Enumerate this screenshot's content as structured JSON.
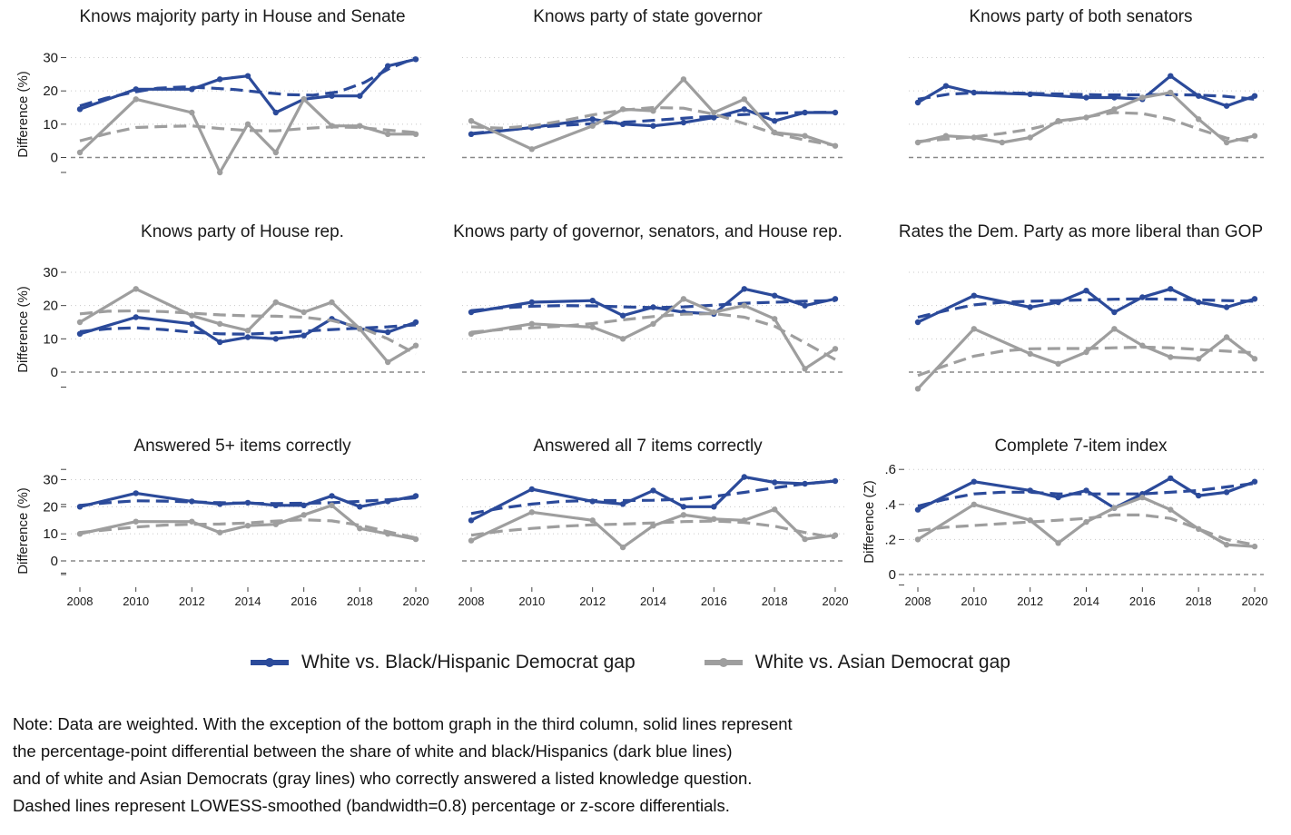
{
  "colors": {
    "blue": "#2b4a9a",
    "gray": "#9e9e9e"
  },
  "years": [
    2008,
    2009,
    2010,
    2011,
    2012,
    2013,
    2014,
    2015,
    2016,
    2017,
    2018,
    2019,
    2020
  ],
  "chart_data": [
    {
      "type": "line",
      "title": "Knows majority party in House and Senate",
      "ylabel": "Difference (%)",
      "yticks": [
        0,
        10,
        20,
        30
      ],
      "yticklabels": [
        "0",
        "10",
        "20",
        "30"
      ],
      "ylim": [
        -6,
        36
      ],
      "series": [
        {
          "name": "White vs. Black/Hispanic Democrat gap",
          "x": [
            2008,
            2010,
            2012,
            2013,
            2014,
            2015,
            2016,
            2017,
            2018,
            2019,
            2020
          ],
          "values": [
            14.5,
            20.5,
            20.5,
            23.5,
            24.5,
            13.5,
            17.5,
            18.5,
            18.5,
            27.5,
            29.5
          ],
          "smooth": [
            15.5,
            17.8,
            19.5,
            20.8,
            21.2,
            20.9,
            20.4,
            19.6,
            18.9,
            18.7,
            19.7,
            22.5,
            26.8,
            30.0
          ]
        },
        {
          "name": "White vs. Asian Democrat gap",
          "x": [
            2008,
            2010,
            2012,
            2013,
            2014,
            2015,
            2016,
            2017,
            2018,
            2019,
            2020
          ],
          "values": [
            1.5,
            17.5,
            13.5,
            -4.5,
            10,
            1.5,
            17.5,
            9.5,
            9.5,
            7,
            7
          ],
          "smooth": [
            5,
            7.2,
            9,
            9.3,
            9.5,
            8.7,
            8.1,
            8,
            8.7,
            9.2,
            9,
            8.2,
            7.5
          ]
        }
      ]
    },
    {
      "type": "line",
      "title": "Knows party of state governor",
      "ylabel": "",
      "yticks": [
        0,
        10,
        20,
        30
      ],
      "yticklabels": [],
      "ylim": [
        -6,
        36
      ],
      "series": [
        {
          "name": "White vs. Black/Hispanic Democrat gap",
          "x": [
            2008,
            2010,
            2012,
            2013,
            2014,
            2015,
            2016,
            2017,
            2018,
            2019,
            2020
          ],
          "values": [
            7,
            9,
            11.5,
            10,
            9.5,
            10.5,
            12,
            14.5,
            11,
            13.5,
            13.5
          ],
          "smooth": [
            7.2,
            8.2,
            9.1,
            9.8,
            10.3,
            10.8,
            11.5,
            12.2,
            12.8,
            13.2,
            13.5,
            13.6
          ]
        },
        {
          "name": "White vs. Asian Democrat gap",
          "x": [
            2008,
            2010,
            2012,
            2013,
            2014,
            2015,
            2016,
            2017,
            2018,
            2019,
            2020
          ],
          "values": [
            11,
            2.5,
            9.5,
            14.5,
            14,
            23.5,
            13.5,
            17.5,
            7.5,
            6.5,
            3.5
          ],
          "smooth": [
            9.2,
            8.8,
            9.5,
            11,
            12.8,
            14.2,
            15,
            14.8,
            13,
            10.2,
            7.2,
            5.2,
            3.6
          ]
        }
      ]
    },
    {
      "type": "line",
      "title": "Knows party of both senators",
      "ylabel": "",
      "yticks": [
        0,
        10,
        20,
        30
      ],
      "yticklabels": [],
      "ylim": [
        -6,
        36
      ],
      "series": [
        {
          "name": "White vs. Black/Hispanic Democrat gap",
          "x": [
            2008,
            2009,
            2010,
            2012,
            2014,
            2015,
            2016,
            2017,
            2018,
            2019,
            2020
          ],
          "values": [
            16.5,
            21.5,
            19.5,
            19,
            18,
            18,
            17.5,
            24.5,
            18.5,
            15.5,
            18.5
          ],
          "smooth": [
            17.5,
            19,
            19.5,
            19.4,
            19.2,
            19,
            18.8,
            18.8,
            18.9,
            18.8,
            18.4,
            17.5
          ]
        },
        {
          "name": "White vs. Asian Democrat gap",
          "x": [
            2008,
            2009,
            2010,
            2011,
            2012,
            2013,
            2014,
            2015,
            2016,
            2017,
            2018,
            2019,
            2020
          ],
          "values": [
            4.5,
            6.5,
            6,
            4.5,
            6,
            11,
            12,
            14.5,
            18,
            19.5,
            11.5,
            4.5,
            6.5
          ],
          "smooth": [
            4.8,
            5.5,
            6.2,
            7.2,
            8.5,
            10.5,
            12.2,
            13.5,
            13.2,
            11.5,
            8.5,
            5.8,
            4.8
          ]
        }
      ]
    },
    {
      "type": "line",
      "title": "Knows party of House rep.",
      "ylabel": "Difference (%)",
      "yticks": [
        0,
        10,
        20,
        30
      ],
      "yticklabels": [
        "0",
        "10",
        "20",
        "30"
      ],
      "ylim": [
        -6,
        36
      ],
      "series": [
        {
          "name": "White vs. Black/Hispanic Democrat gap",
          "x": [
            2008,
            2010,
            2012,
            2013,
            2014,
            2015,
            2016,
            2017,
            2018,
            2019,
            2020
          ],
          "values": [
            11.5,
            16.5,
            14.5,
            9,
            10.5,
            10,
            11,
            16,
            13,
            12,
            15
          ],
          "smooth": [
            12.2,
            13,
            13.3,
            12.8,
            12,
            11.5,
            11.4,
            11.8,
            12.3,
            12.8,
            13.2,
            13.6,
            14.2
          ]
        },
        {
          "name": "White vs. Asian Democrat gap",
          "x": [
            2008,
            2010,
            2012,
            2013,
            2014,
            2015,
            2016,
            2017,
            2018,
            2019,
            2020
          ],
          "values": [
            15,
            25,
            17,
            14.5,
            12.5,
            21,
            18,
            21,
            13,
            3,
            8
          ],
          "smooth": [
            17.5,
            18.3,
            18.4,
            18.2,
            17.7,
            17.2,
            16.9,
            16.8,
            16.5,
            15.5,
            13.5,
            10,
            5.5
          ]
        }
      ]
    },
    {
      "type": "line",
      "title": "Knows party of governor, senators, and House rep.",
      "ylabel": "",
      "yticks": [
        0,
        10,
        20,
        30
      ],
      "yticklabels": [],
      "ylim": [
        -6,
        36
      ],
      "series": [
        {
          "name": "White vs. Black/Hispanic Democrat gap",
          "x": [
            2008,
            2010,
            2012,
            2013,
            2014,
            2015,
            2016,
            2017,
            2018,
            2019,
            2020
          ],
          "values": [
            18,
            21,
            21.5,
            17,
            19.5,
            18,
            17.5,
            25,
            23,
            20,
            22
          ],
          "smooth": [
            18.5,
            19.3,
            19.8,
            20,
            19.9,
            19.6,
            19.4,
            19.6,
            20.1,
            20.7,
            21,
            21.3,
            21.5
          ]
        },
        {
          "name": "White vs. Asian Democrat gap",
          "x": [
            2008,
            2010,
            2012,
            2013,
            2014,
            2015,
            2016,
            2017,
            2018,
            2019,
            2020
          ],
          "values": [
            11.5,
            14.5,
            13.5,
            10,
            14.5,
            22,
            18,
            20,
            16,
            1,
            7
          ],
          "smooth": [
            12,
            12.8,
            13.3,
            13.8,
            14.6,
            15.7,
            16.7,
            17.4,
            17.6,
            16.5,
            13.8,
            8.8,
            3.8
          ]
        }
      ]
    },
    {
      "type": "line",
      "title": "Rates the Dem. Party as more liberal than GOP",
      "ylabel": "",
      "yticks": [
        0,
        10,
        20,
        30
      ],
      "yticklabels": [],
      "ylim": [
        -6,
        36
      ],
      "series": [
        {
          "name": "White vs. Black/Hispanic Democrat gap",
          "x": [
            2008,
            2010,
            2012,
            2013,
            2014,
            2015,
            2016,
            2017,
            2018,
            2019,
            2020
          ],
          "values": [
            15,
            23,
            19.5,
            21,
            24.5,
            18,
            22.5,
            25,
            21,
            19.5,
            22
          ],
          "smooth": [
            16.5,
            18.5,
            20.2,
            21,
            21.3,
            21.5,
            21.7,
            21.9,
            22,
            21.9,
            21.7,
            21.5,
            21.3
          ]
        },
        {
          "name": "White vs. Asian Democrat gap",
          "x": [
            2008,
            2010,
            2012,
            2013,
            2014,
            2015,
            2016,
            2017,
            2018,
            2019,
            2020
          ],
          "values": [
            -5,
            13,
            5.5,
            2.5,
            6,
            13,
            8,
            4.5,
            4,
            10.5,
            4
          ],
          "smooth": [
            -1,
            2,
            4.8,
            6.3,
            7,
            7.1,
            7.1,
            7.3,
            7.5,
            7.3,
            6.8,
            6.3,
            5.8
          ]
        }
      ]
    },
    {
      "type": "line",
      "title": "Answered 5+ items correctly",
      "ylabel": "Difference (%)",
      "yticks": [
        0,
        10,
        20,
        30
      ],
      "yticklabels": [
        "0",
        "10",
        "20",
        "30"
      ],
      "ylim": [
        -6,
        36
      ],
      "series": [
        {
          "name": "White vs. Black/Hispanic Democrat gap",
          "x": [
            2008,
            2010,
            2012,
            2013,
            2014,
            2015,
            2016,
            2017,
            2018,
            2019,
            2020
          ],
          "values": [
            20,
            25,
            22,
            21,
            21.5,
            20.5,
            20.5,
            24,
            20,
            22,
            24
          ],
          "smooth": [
            20.5,
            21.5,
            22.2,
            22.1,
            21.8,
            21.5,
            21.3,
            21.2,
            21.3,
            21.5,
            22,
            22.6,
            23.3
          ]
        },
        {
          "name": "White vs. Asian Democrat gap",
          "x": [
            2008,
            2010,
            2012,
            2013,
            2014,
            2015,
            2016,
            2017,
            2018,
            2019,
            2020
          ],
          "values": [
            10,
            14.5,
            14.5,
            10.5,
            13,
            13.5,
            17,
            20.5,
            12,
            10,
            8
          ],
          "smooth": [
            10.5,
            11.5,
            12.5,
            13.2,
            13.5,
            13.6,
            14,
            14.7,
            15.2,
            14.8,
            13.2,
            10.8,
            8.5
          ]
        }
      ]
    },
    {
      "type": "line",
      "title": "Answered all 7 items correctly",
      "ylabel": "",
      "yticks": [
        0,
        10,
        20,
        30
      ],
      "yticklabels": [],
      "ylim": [
        -6,
        36
      ],
      "series": [
        {
          "name": "White vs. Black/Hispanic Democrat gap",
          "x": [
            2008,
            2010,
            2012,
            2013,
            2014,
            2015,
            2016,
            2017,
            2018,
            2019,
            2020
          ],
          "values": [
            15,
            26.5,
            22,
            21,
            26,
            20,
            20,
            31,
            29,
            28.5,
            29.5
          ],
          "smooth": [
            17.5,
            19.5,
            21,
            22,
            22.3,
            22.3,
            22.4,
            22.8,
            23.8,
            25.3,
            27,
            28.5,
            29.5
          ]
        },
        {
          "name": "White vs. Asian Democrat gap",
          "x": [
            2008,
            2010,
            2012,
            2013,
            2014,
            2015,
            2016,
            2017,
            2018,
            2019,
            2020
          ],
          "values": [
            7.5,
            18,
            15,
            5,
            13,
            17,
            15.5,
            15,
            19,
            8,
            9.5
          ],
          "smooth": [
            9.5,
            11,
            12,
            12.8,
            13.3,
            13.6,
            14,
            14.5,
            14.7,
            14.2,
            12.8,
            10.5,
            8.5
          ]
        }
      ]
    },
    {
      "type": "line",
      "title": "Complete 7-item index",
      "ylabel": "Difference (Z)",
      "yticks": [
        0,
        0.2,
        0.4,
        0.6
      ],
      "yticklabels": [
        "0",
        ".2",
        ".4",
        ".6"
      ],
      "ylim": [
        -0.085,
        0.64
      ],
      "series": [
        {
          "name": "White vs. Black/Hispanic Democrat gap",
          "x": [
            2008,
            2010,
            2012,
            2013,
            2014,
            2015,
            2016,
            2017,
            2018,
            2019,
            2020
          ],
          "values": [
            0.37,
            0.53,
            0.48,
            0.44,
            0.48,
            0.38,
            0.46,
            0.55,
            0.45,
            0.47,
            0.53
          ],
          "smooth": [
            0.39,
            0.43,
            0.46,
            0.47,
            0.47,
            0.46,
            0.46,
            0.46,
            0.46,
            0.47,
            0.48,
            0.5,
            0.52
          ]
        },
        {
          "name": "White vs. Asian Democrat gap",
          "x": [
            2008,
            2010,
            2012,
            2013,
            2014,
            2015,
            2016,
            2017,
            2018,
            2019,
            2020
          ],
          "values": [
            0.2,
            0.4,
            0.31,
            0.18,
            0.3,
            0.38,
            0.44,
            0.37,
            0.26,
            0.17,
            0.16
          ],
          "smooth": [
            0.25,
            0.27,
            0.28,
            0.29,
            0.3,
            0.31,
            0.32,
            0.34,
            0.34,
            0.32,
            0.26,
            0.2,
            0.17
          ]
        }
      ]
    }
  ],
  "x_axis_ticks": [
    "2008",
    "2010",
    "2012",
    "2014",
    "2016",
    "2018",
    "2020"
  ],
  "legend": [
    {
      "label": "White vs. Black/Hispanic Democrat gap",
      "color": "#2b4a9a"
    },
    {
      "label": "White vs. Asian Democrat gap",
      "color": "#9e9e9e"
    }
  ],
  "note": [
    "Note: Data are weighted. With the exception of the bottom graph in the third column, solid lines represent",
    "the percentage-point differential between the share of white and black/Hispanics (dark blue lines)",
    "and of white and Asian Democrats (gray lines) who correctly answered a listed knowledge question.",
    "Dashed lines represent LOWESS-smoothed (bandwidth=0.8) percentage or z-score differentials."
  ]
}
